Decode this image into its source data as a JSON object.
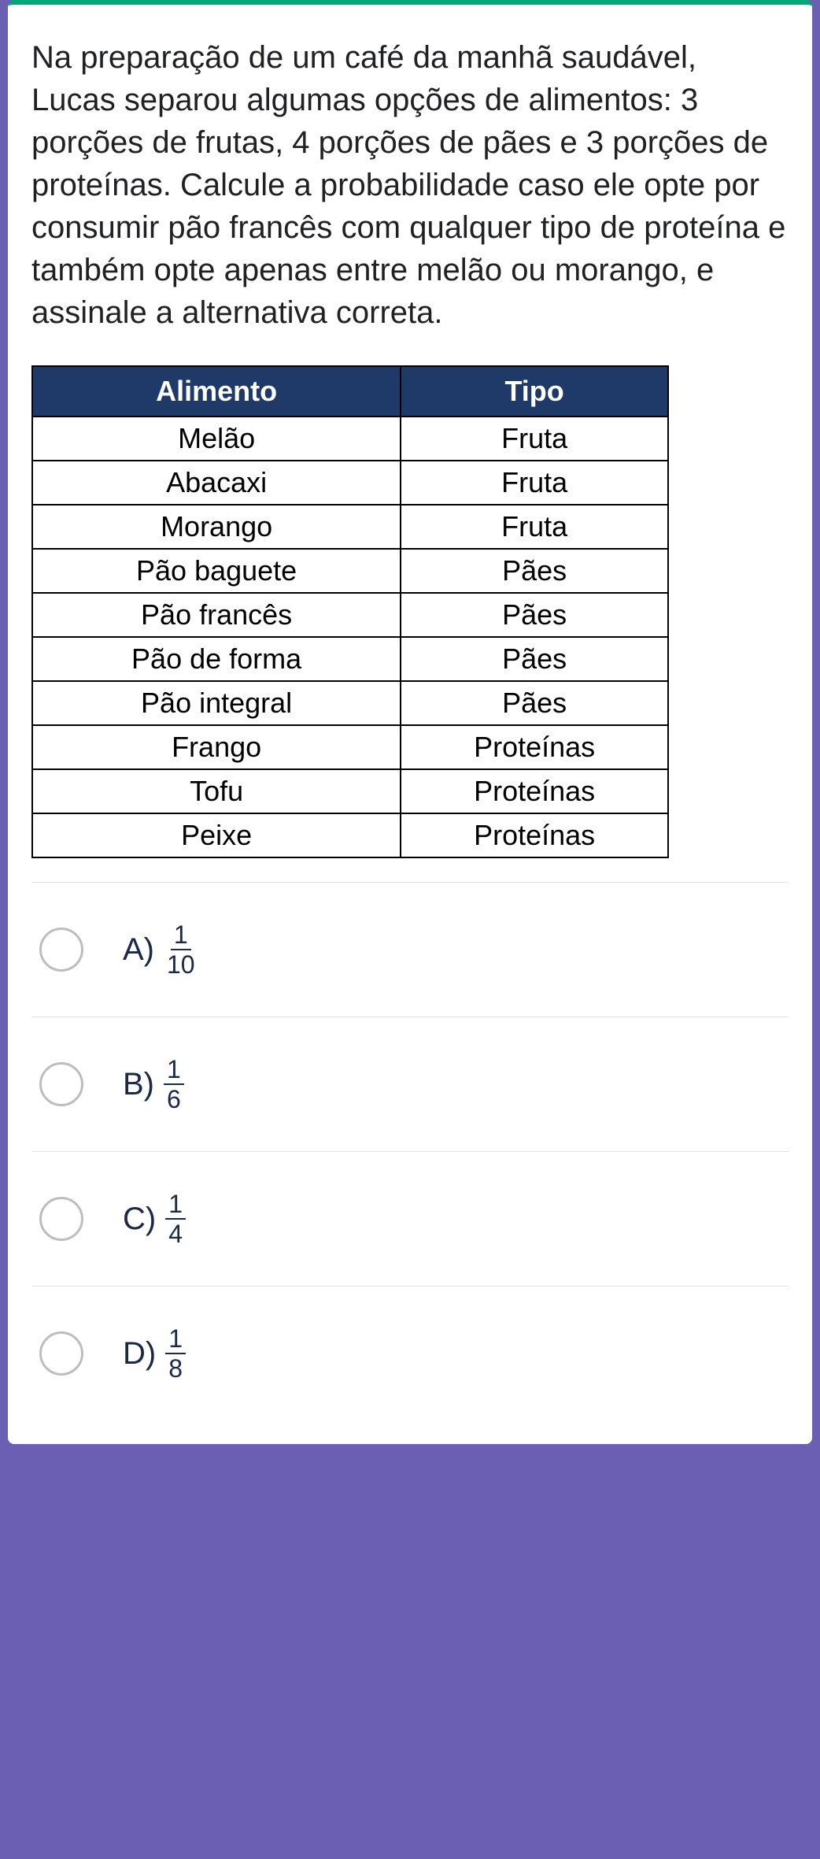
{
  "question": {
    "text": "Na preparação de um café da manhã saudável, Lucas separou algumas opções de alimentos: 3 porções de frutas, 4 porções de pães e 3 porções de proteínas. Calcule a probabilidade caso ele opte por consumir pão francês com qualquer tipo de proteína e também opte apenas entre melão ou morango, e assinale a alternativa correta."
  },
  "table": {
    "headers": [
      "Alimento",
      "Tipo"
    ],
    "rows": [
      [
        "Melão",
        "Fruta"
      ],
      [
        "Abacaxi",
        "Fruta"
      ],
      [
        "Morango",
        "Fruta"
      ],
      [
        "Pão baguete",
        "Pães"
      ],
      [
        "Pão francês",
        "Pães"
      ],
      [
        "Pão de forma",
        "Pães"
      ],
      [
        "Pão integral",
        "Pães"
      ],
      [
        "Frango",
        "Proteínas"
      ],
      [
        "Tofu",
        "Proteínas"
      ],
      [
        "Peixe",
        "Proteínas"
      ]
    ],
    "header_bg": "#1f3a68",
    "header_color": "#ffffff",
    "border_color": "#000000",
    "font_size": 36
  },
  "options": [
    {
      "letter": "A)",
      "numerator": "1",
      "denominator": "10"
    },
    {
      "letter": "B)",
      "numerator": "1",
      "denominator": "6"
    },
    {
      "letter": "C)",
      "numerator": "1",
      "denominator": "4"
    },
    {
      "letter": "D)",
      "numerator": "1",
      "denominator": "8"
    }
  ],
  "colors": {
    "page_bg": "#6b5fb3",
    "card_bg": "#ffffff",
    "accent_top": "#00a878",
    "text": "#202124",
    "option_text": "#1a2a44",
    "divider": "#e0e0e0",
    "radio_border": "#bdbdbd"
  }
}
